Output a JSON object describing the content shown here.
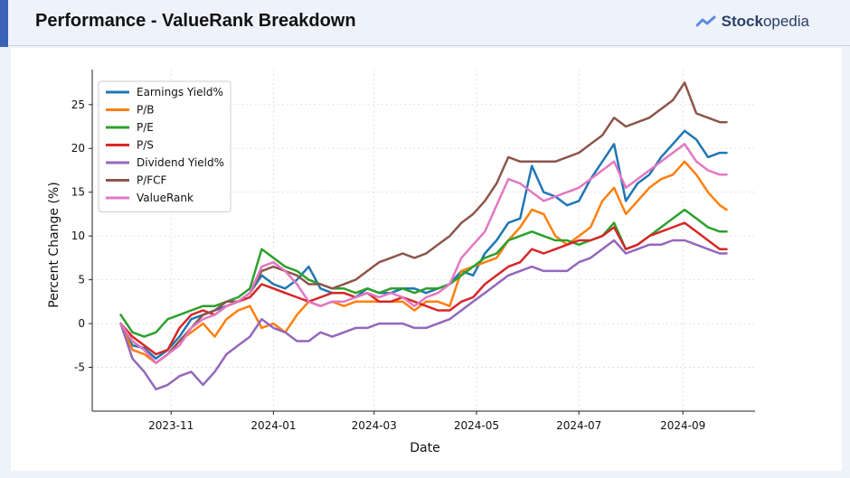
{
  "header": {
    "title": "Performance - ValueRank Breakdown",
    "brand_bold": "Stock",
    "brand_rest": "opedia",
    "brand_icon": "stockopedia-logo-icon"
  },
  "chart_data": {
    "type": "line",
    "xlabel": "Date",
    "ylabel": "Percent Change (%)",
    "x_ticks": [
      "2023-11",
      "2024-01",
      "2024-03",
      "2024-05",
      "2024-07",
      "2024-09"
    ],
    "y_ticks": [
      -5,
      0,
      5,
      10,
      15,
      20,
      25
    ],
    "xlim": [
      "2023-09-15",
      "2024-10-14"
    ],
    "ylim": [
      -10,
      29
    ],
    "grid": true,
    "legend_position": "top-left",
    "x_dates": [
      "2023-10-02",
      "2023-10-09",
      "2023-10-16",
      "2023-10-23",
      "2023-10-30",
      "2023-11-06",
      "2023-11-13",
      "2023-11-20",
      "2023-11-27",
      "2023-12-04",
      "2023-12-11",
      "2023-12-18",
      "2023-12-25",
      "2024-01-01",
      "2024-01-08",
      "2024-01-15",
      "2024-01-22",
      "2024-01-29",
      "2024-02-05",
      "2024-02-12",
      "2024-02-19",
      "2024-02-26",
      "2024-03-04",
      "2024-03-11",
      "2024-03-18",
      "2024-03-25",
      "2024-04-01",
      "2024-04-08",
      "2024-04-15",
      "2024-04-22",
      "2024-04-29",
      "2024-05-06",
      "2024-05-13",
      "2024-05-20",
      "2024-05-27",
      "2024-06-03",
      "2024-06-10",
      "2024-06-17",
      "2024-06-24",
      "2024-07-01",
      "2024-07-08",
      "2024-07-15",
      "2024-07-22",
      "2024-07-29",
      "2024-08-05",
      "2024-08-12",
      "2024-08-19",
      "2024-08-26",
      "2024-09-02",
      "2024-09-09",
      "2024-09-16",
      "2024-09-23",
      "2024-09-27"
    ],
    "series": [
      {
        "name": "Earnings Yield%",
        "color": "#1f77b4",
        "values": [
          0,
          -2.5,
          -2.8,
          -4.0,
          -3.0,
          -1.5,
          0.5,
          1.0,
          1.5,
          2.0,
          2.5,
          3.5,
          5.5,
          4.5,
          4.0,
          5.0,
          6.5,
          4.0,
          3.5,
          3.5,
          3.0,
          4.0,
          3.5,
          3.5,
          4.0,
          4.0,
          3.5,
          4.0,
          4.5,
          6.0,
          5.5,
          8.0,
          9.5,
          11.5,
          12.0,
          18.0,
          15.0,
          14.5,
          13.5,
          14.0,
          16.5,
          18.5,
          20.5,
          14.0,
          16.0,
          17.0,
          19.0,
          20.5,
          22.0,
          21.0,
          19.0,
          19.5,
          19.5
        ]
      },
      {
        "name": "P/B",
        "color": "#ff7f0e",
        "values": [
          0,
          -3.0,
          -3.5,
          -4.5,
          -3.5,
          -2.0,
          -1.0,
          0.0,
          -1.5,
          0.5,
          1.5,
          2.0,
          -0.5,
          0.0,
          -1.0,
          1.0,
          2.5,
          2.0,
          2.5,
          2.0,
          2.5,
          2.5,
          2.5,
          2.5,
          2.5,
          1.5,
          2.5,
          2.5,
          2.0,
          6.0,
          6.5,
          7.0,
          7.5,
          9.5,
          11.0,
          13.0,
          12.5,
          10.0,
          9.0,
          10.0,
          11.0,
          14.0,
          15.5,
          12.5,
          14.0,
          15.5,
          16.5,
          17.0,
          18.5,
          17.0,
          15.0,
          13.5,
          13.0
        ]
      },
      {
        "name": "P/E",
        "color": "#2ca02c",
        "values": [
          1.0,
          -1.0,
          -1.5,
          -1.0,
          0.5,
          1.0,
          1.5,
          2.0,
          2.0,
          2.5,
          3.0,
          4.0,
          8.5,
          7.5,
          6.5,
          6.0,
          5.0,
          4.5,
          4.0,
          4.0,
          3.5,
          4.0,
          3.5,
          4.0,
          4.0,
          3.5,
          4.0,
          4.0,
          4.5,
          5.5,
          6.5,
          7.5,
          8.0,
          9.5,
          10.0,
          10.5,
          10.0,
          9.5,
          9.5,
          9.0,
          9.5,
          10.0,
          11.5,
          8.5,
          9.0,
          10.0,
          11.0,
          12.0,
          13.0,
          12.0,
          11.0,
          10.5,
          10.5
        ]
      },
      {
        "name": "P/S",
        "color": "#d62728",
        "values": [
          0,
          -1.5,
          -2.5,
          -3.5,
          -3.0,
          -0.5,
          1.0,
          1.5,
          1.0,
          2.0,
          2.5,
          3.0,
          4.5,
          4.0,
          3.5,
          3.0,
          2.5,
          3.0,
          3.5,
          3.5,
          3.0,
          3.5,
          2.5,
          2.5,
          3.0,
          2.5,
          2.0,
          1.5,
          1.5,
          2.5,
          3.0,
          4.5,
          5.5,
          6.5,
          7.0,
          8.5,
          8.0,
          8.5,
          9.0,
          9.5,
          9.5,
          10.0,
          11.0,
          8.5,
          9.0,
          10.0,
          10.5,
          11.0,
          11.5,
          10.5,
          9.5,
          8.5,
          8.5
        ]
      },
      {
        "name": "Dividend Yield%",
        "color": "#9467bd",
        "values": [
          0,
          -4.0,
          -5.5,
          -7.5,
          -7.0,
          -6.0,
          -5.5,
          -7.0,
          -5.5,
          -3.5,
          -2.5,
          -1.5,
          0.5,
          -0.5,
          -1.0,
          -2.0,
          -2.0,
          -1.0,
          -1.5,
          -1.0,
          -0.5,
          -0.5,
          0.0,
          0.0,
          0.0,
          -0.5,
          -0.5,
          0.0,
          0.5,
          1.5,
          2.5,
          3.5,
          4.5,
          5.5,
          6.0,
          6.5,
          6.0,
          6.0,
          6.0,
          7.0,
          7.5,
          8.5,
          9.5,
          8.0,
          8.5,
          9.0,
          9.0,
          9.5,
          9.5,
          9.0,
          8.5,
          8.0,
          8.0
        ]
      },
      {
        "name": "P/FCF",
        "color": "#8c564b",
        "values": [
          0,
          -2.0,
          -3.0,
          -4.5,
          -3.5,
          -2.0,
          -0.5,
          1.0,
          1.5,
          2.5,
          2.5,
          3.5,
          6.0,
          6.5,
          6.0,
          5.5,
          4.5,
          4.5,
          4.0,
          4.5,
          5.0,
          6.0,
          7.0,
          7.5,
          8.0,
          7.5,
          8.0,
          9.0,
          10.0,
          11.5,
          12.5,
          14.0,
          16.0,
          19.0,
          18.5,
          18.5,
          18.5,
          18.5,
          19.0,
          19.5,
          20.5,
          21.5,
          23.5,
          22.5,
          23.0,
          23.5,
          24.5,
          25.5,
          27.5,
          24.0,
          23.5,
          23.0,
          23.0
        ]
      },
      {
        "name": "ValueRank",
        "color": "#e377c2",
        "values": [
          0,
          -2.0,
          -3.0,
          -4.5,
          -3.5,
          -2.5,
          -0.5,
          0.5,
          1.0,
          2.0,
          2.5,
          3.5,
          6.5,
          7.0,
          6.0,
          4.5,
          2.5,
          2.0,
          2.5,
          2.5,
          3.0,
          3.5,
          3.0,
          3.5,
          3.0,
          2.0,
          3.0,
          3.5,
          4.5,
          7.5,
          9.0,
          10.5,
          13.5,
          16.5,
          16.0,
          15.0,
          14.0,
          14.5,
          15.0,
          15.5,
          16.5,
          17.5,
          18.5,
          15.5,
          16.5,
          17.5,
          18.5,
          19.5,
          20.5,
          18.5,
          17.5,
          17.0,
          17.0
        ]
      }
    ]
  }
}
